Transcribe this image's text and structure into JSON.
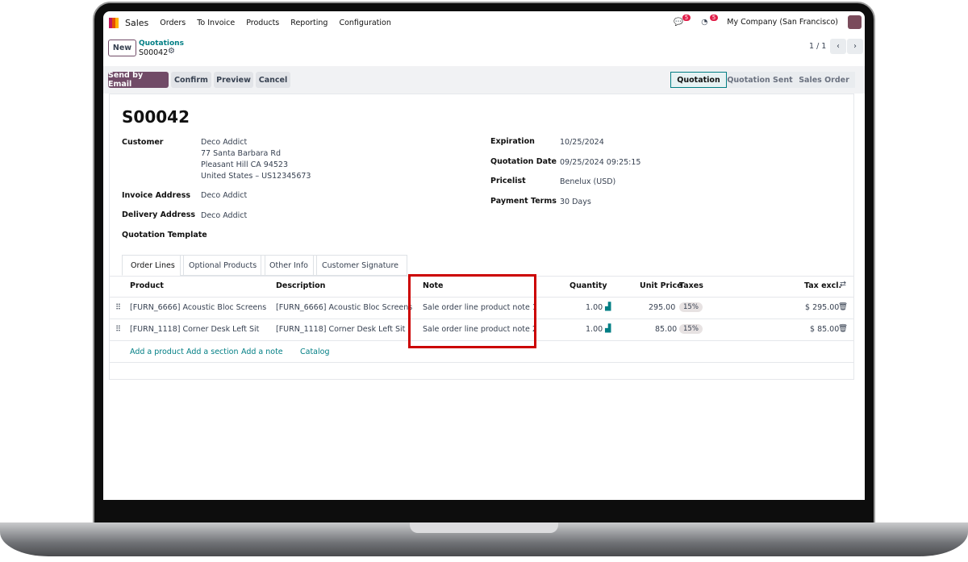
{
  "nav": {
    "app": "Sales",
    "menu": [
      "Orders",
      "To Invoice",
      "Products",
      "Reporting",
      "Configuration"
    ],
    "messages_count": "5",
    "activities_count": "5",
    "company": "My Company (San Francisco)"
  },
  "control": {
    "new": "New",
    "breadcrumb": "Quotations",
    "record": "S00042",
    "pager": "1 / 1"
  },
  "actions": {
    "send": "Send by Email",
    "confirm": "Confirm",
    "preview": "Preview",
    "cancel": "Cancel"
  },
  "statusbar": [
    "Quotation",
    "Quotation Sent",
    "Sales Order"
  ],
  "form": {
    "title": "S00042",
    "customer_label": "Customer",
    "customer": [
      "Deco Addict",
      "77 Santa Barbara Rd",
      "Pleasant Hill CA 94523",
      "United States – US12345673"
    ],
    "invoice_label": "Invoice Address",
    "invoice": "Deco Addict",
    "delivery_label": "Delivery Address",
    "delivery": "Deco Addict",
    "template_label": "Quotation Template",
    "expiration_label": "Expiration",
    "expiration": "10/25/2024",
    "qdate_label": "Quotation Date",
    "qdate": "09/25/2024 09:25:15",
    "pricelist_label": "Pricelist",
    "pricelist": "Benelux (USD)",
    "terms_label": "Payment Terms",
    "terms": "30 Days"
  },
  "tabs": [
    "Order Lines",
    "Optional Products",
    "Other Info",
    "Customer Signature"
  ],
  "table": {
    "headers": [
      "Product",
      "Description",
      "Note",
      "Quantity",
      "Unit Price",
      "Taxes",
      "Tax excl."
    ],
    "rows": [
      {
        "product": "[FURN_6666] Acoustic Bloc Screens",
        "description": "[FURN_6666] Acoustic Bloc Screens",
        "note": "Sale order line product note 1",
        "qty": "1.00",
        "price": "295.00",
        "tax": "15%",
        "total": "$ 295.00"
      },
      {
        "product": "[FURN_1118] Corner Desk Left Sit",
        "description": "[FURN_1118] Corner Desk Left Sit",
        "note": "Sale order line product note 2",
        "qty": "1.00",
        "price": "85.00",
        "tax": "15%",
        "total": "$ 85.00"
      }
    ],
    "links": [
      "Add a product",
      "Add a section",
      "Add a note",
      "Catalog"
    ]
  },
  "colors": {
    "primary": "#714b67",
    "link": "#017e84",
    "highlight": "#cc0000"
  }
}
